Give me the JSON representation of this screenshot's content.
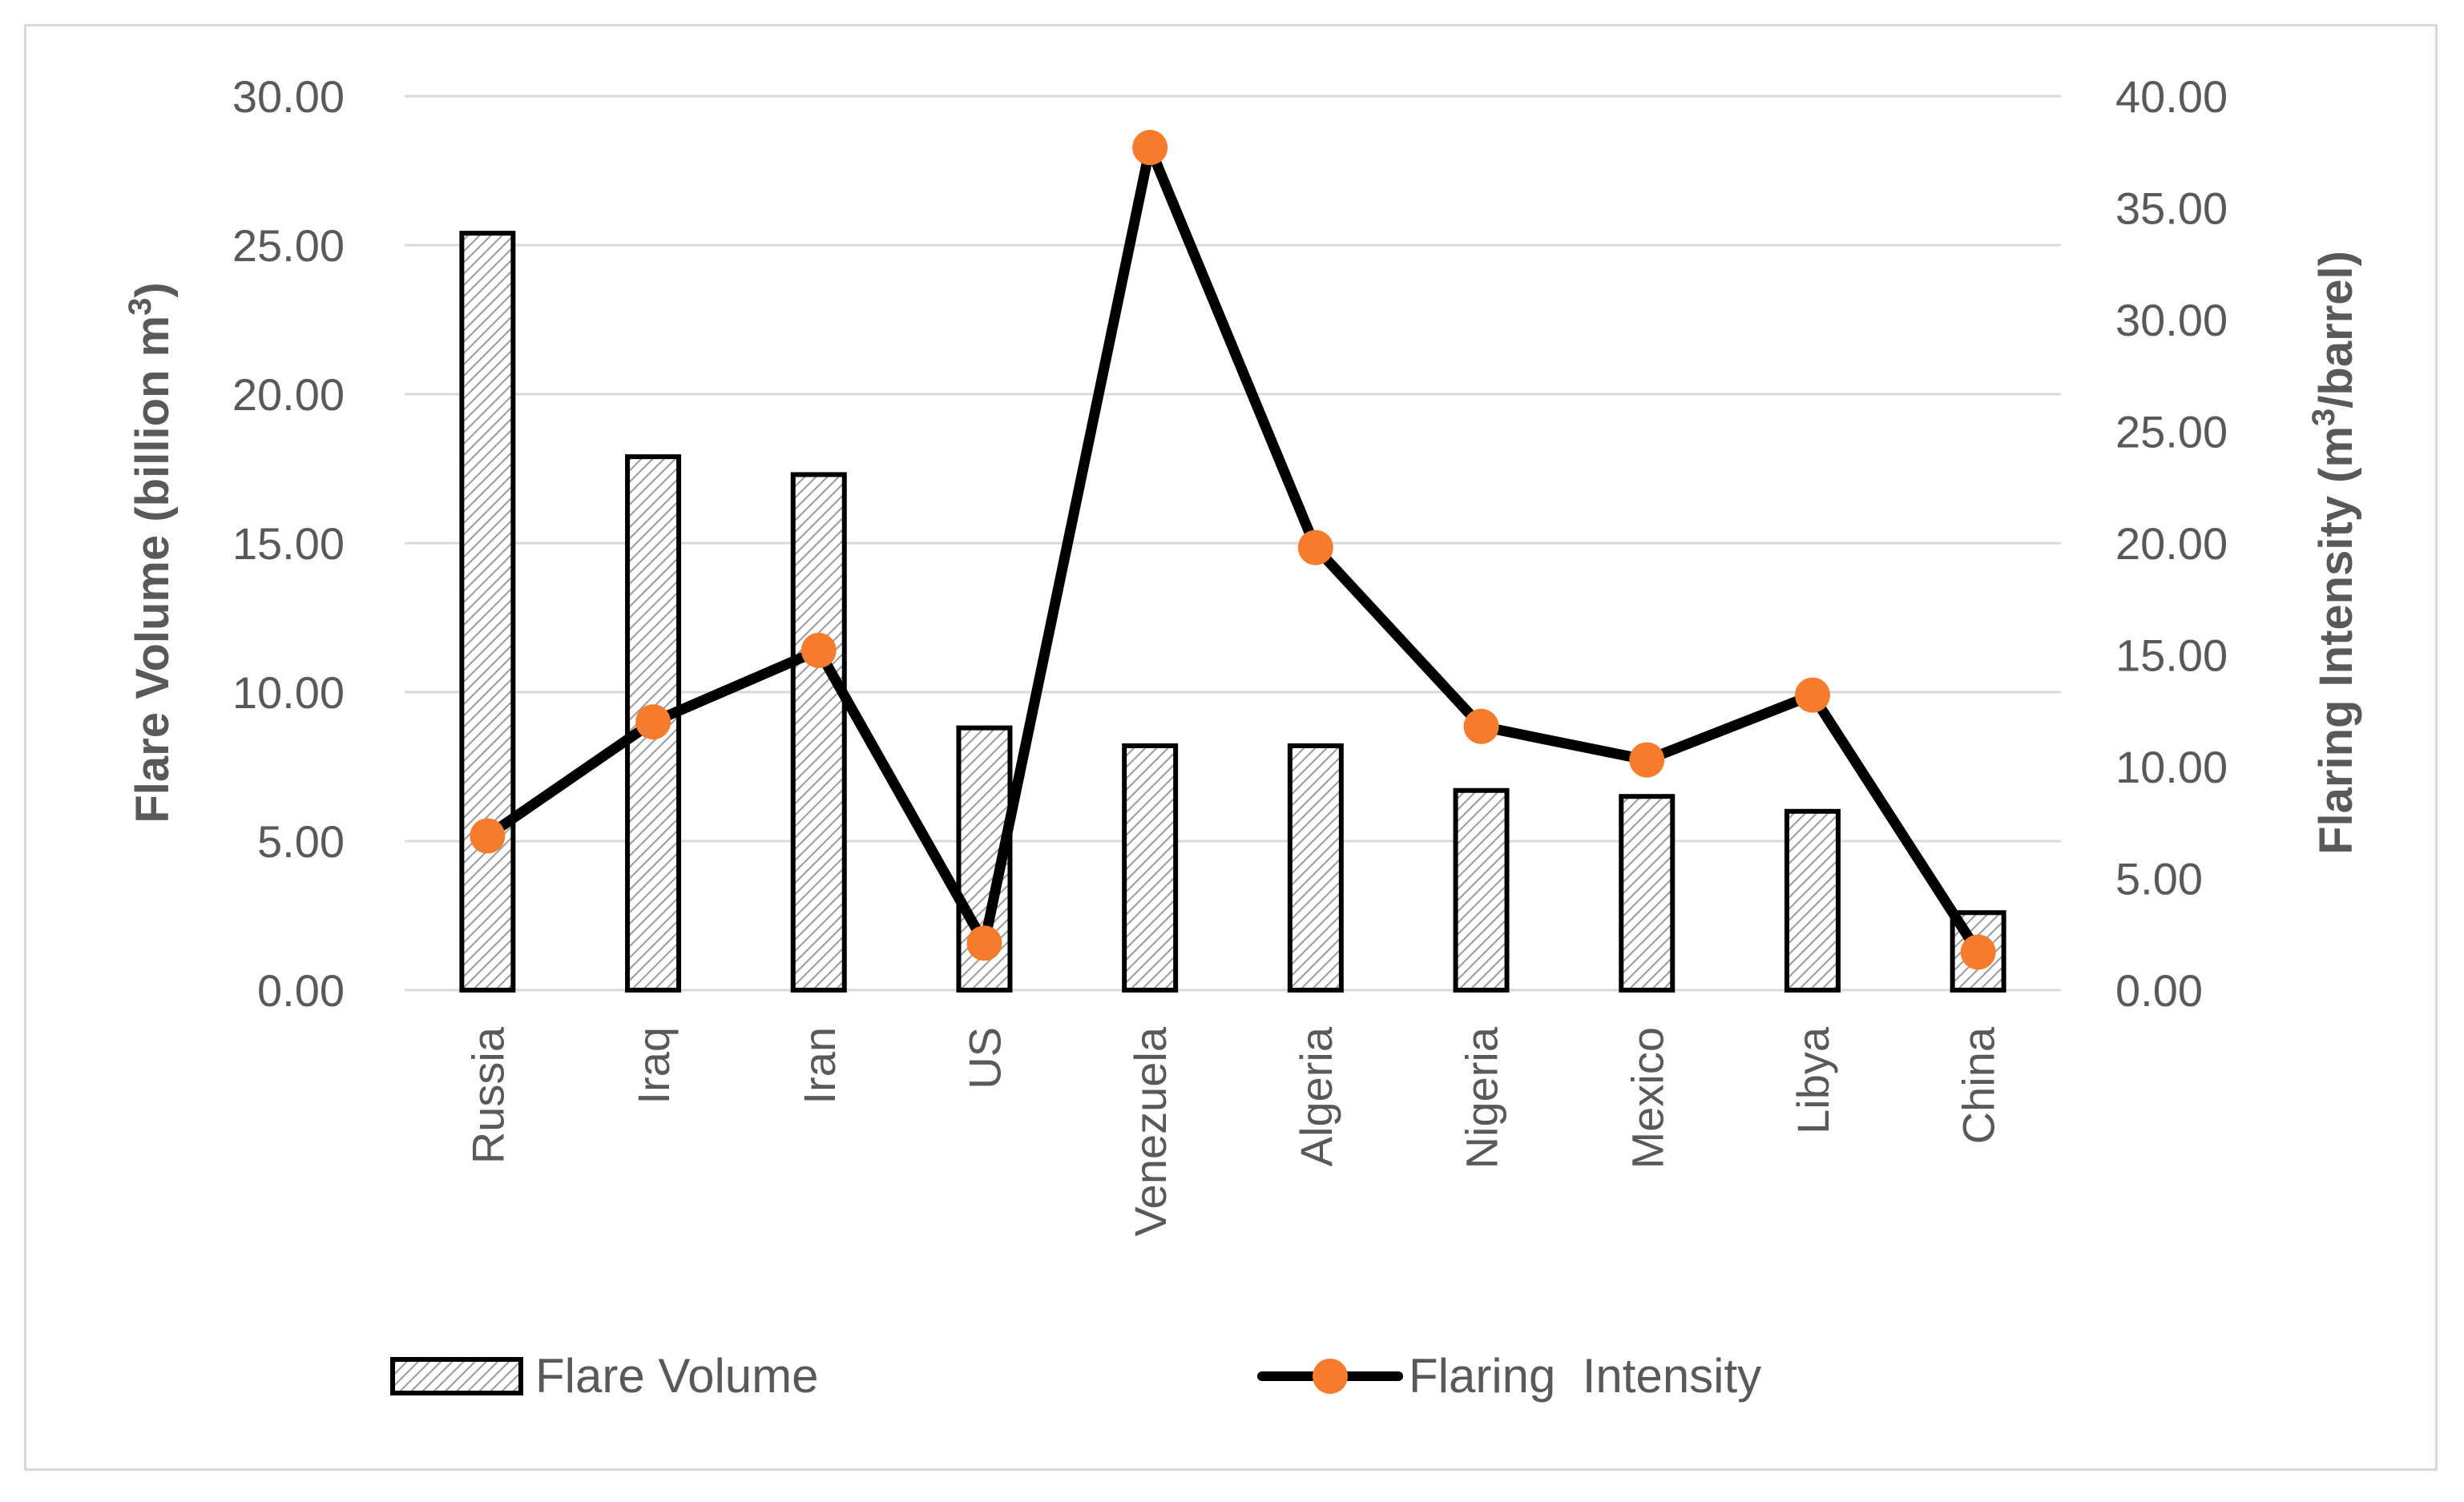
{
  "chart_data": {
    "type": "bar+line",
    "categories": [
      "Russia",
      "Iraq",
      "Iran",
      "US",
      "Venezuela",
      "Algeria",
      "Nigeria",
      "Mexico",
      "Libya",
      "China"
    ],
    "series": [
      {
        "name": "Flare Volume",
        "type": "bar",
        "axis": "left",
        "values": [
          25.4,
          17.9,
          17.3,
          8.8,
          8.2,
          8.2,
          6.7,
          6.5,
          6.0,
          2.6
        ]
      },
      {
        "name": "Flaring  Intensity",
        "type": "line",
        "axis": "right",
        "values": [
          6.9,
          12.0,
          15.2,
          2.1,
          37.7,
          19.8,
          11.8,
          10.3,
          13.2,
          1.7
        ]
      }
    ],
    "y_left": {
      "label_main": "Flare Volume (billion m",
      "label_sup": "3",
      "label_end": ")",
      "ylim": [
        0,
        30
      ],
      "ticks": [
        "0.00",
        "5.00",
        "10.00",
        "15.00",
        "20.00",
        "25.00",
        "30.00"
      ]
    },
    "y_right": {
      "label_main": "Flaring Intensity (m",
      "label_sup": "3",
      "label_end": "/barrel)",
      "ylim": [
        0,
        40
      ],
      "ticks": [
        "0.00",
        "5.00",
        "10.00",
        "15.00",
        "20.00",
        "25.00",
        "30.00",
        "35.00",
        "40.00"
      ]
    },
    "grid": true,
    "legend_position": "bottom",
    "colors": {
      "bar_edge": "#000000",
      "line": "#000000",
      "marker": "#f47c2c",
      "grid": "#d9d9d9",
      "text": "#595959"
    }
  }
}
